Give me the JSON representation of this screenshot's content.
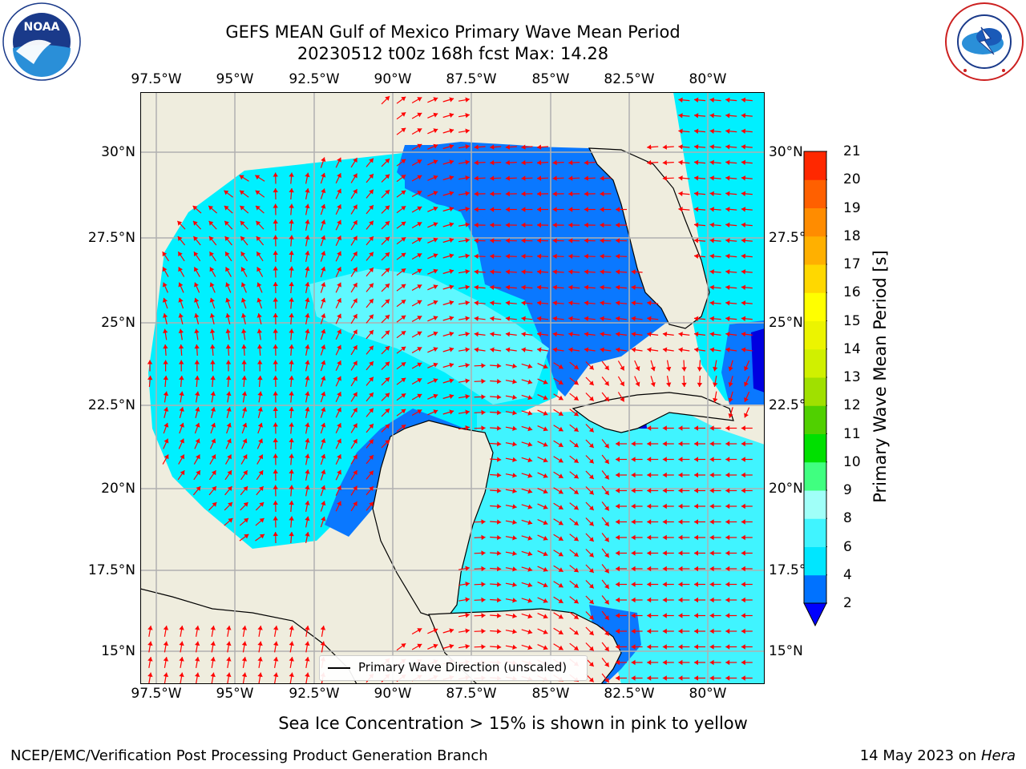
{
  "title": {
    "line1": "GEFS MEAN Gulf of Mexico Primary Wave Mean Period",
    "line2": "20230512 t00z 168h fcst   Max: 14.28"
  },
  "logos": {
    "left": {
      "icon": "noaa-logo",
      "text": "NOAA",
      "ring_text": "NATIONAL OCEANIC AND ATMOSPHERIC ADMINISTRATION · U.S. DEPARTMENT OF COMMERCE"
    },
    "right": {
      "icon": "nws-logo",
      "ring_text": "NATIONAL WEATHER SERVICE"
    }
  },
  "map": {
    "lon_labels": [
      "97.5°W",
      "95°W",
      "92.5°W",
      "90°W",
      "87.5°W",
      "85°W",
      "82.5°W",
      "80°W"
    ],
    "lat_labels": [
      "30°N",
      "27.5°N",
      "25°N",
      "22.5°N",
      "20°N",
      "17.5°N",
      "15°N"
    ],
    "lon_range": [
      "98°W",
      "78.5°W"
    ],
    "lat_range": [
      "14°N",
      "31.8°N"
    ],
    "gridlines": true,
    "arrow_color": "#ff0000",
    "land_color": "#efedde",
    "legend_text": "Primary Wave Direction (unscaled)"
  },
  "colorbar": {
    "label": "Primary Wave Mean Period [s]",
    "ticks": [
      "2",
      "4",
      "6",
      "8",
      "9",
      "10",
      "11",
      "12",
      "13",
      "14",
      "15",
      "16",
      "17",
      "18",
      "19",
      "20",
      "21"
    ],
    "colors": [
      "#0072ff",
      "#00e6ff",
      "#40f4ff",
      "#a0fff8",
      "#40ff80",
      "#00e000",
      "#50d000",
      "#a0e000",
      "#d0f000",
      "#ecf400",
      "#ffff00",
      "#ffd800",
      "#ffb000",
      "#ff8c00",
      "#ff6000",
      "#ff2800"
    ],
    "under_color": "#0000ff",
    "over_color": "#ff0000"
  },
  "note": "Sea Ice Concentration > 15% is shown in pink to yellow",
  "footer": {
    "left": "NCEP/EMC/Verification Post Processing Product Generation Branch",
    "right_prefix": "14 May 2023 on ",
    "right_italic": "Hera"
  }
}
